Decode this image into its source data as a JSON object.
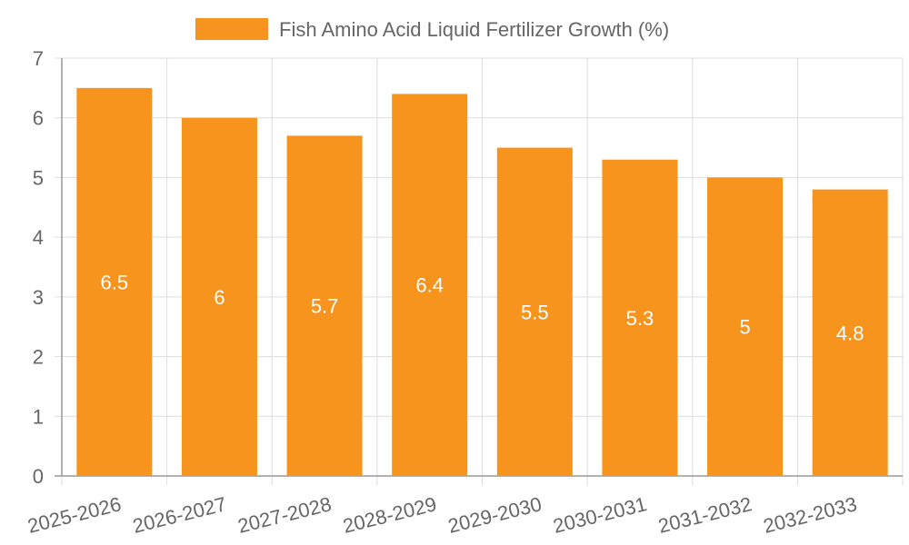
{
  "chart_data": {
    "type": "bar",
    "categories": [
      "2025-2026",
      "2026-2027",
      "2027-2028",
      "2028-2029",
      "2029-2030",
      "2030-2031",
      "2031-2032",
      "2032-2033"
    ],
    "series": [
      {
        "name": "Fish Amino Acid Liquid Fertilizer Growth (%)",
        "values": [
          6.5,
          6,
          5.7,
          6.4,
          5.5,
          5.3,
          5,
          4.8
        ],
        "color": "#f7941d"
      }
    ],
    "data_labels": [
      "6.5",
      "6",
      "5.7",
      "6.4",
      "5.5",
      "5.3",
      "5",
      "4.8"
    ],
    "y_ticks": [
      "0",
      "1",
      "2",
      "3",
      "4",
      "5",
      "6",
      "7"
    ],
    "ylim": [
      0,
      7
    ],
    "xlabel": "",
    "ylabel": "",
    "grid": true,
    "legend_position": "top-center",
    "colors": {
      "bar": "#f7941d",
      "grid": "#dddddd",
      "axis": "#999999",
      "tick_text": "#666666",
      "data_label": "#ffffff"
    }
  }
}
